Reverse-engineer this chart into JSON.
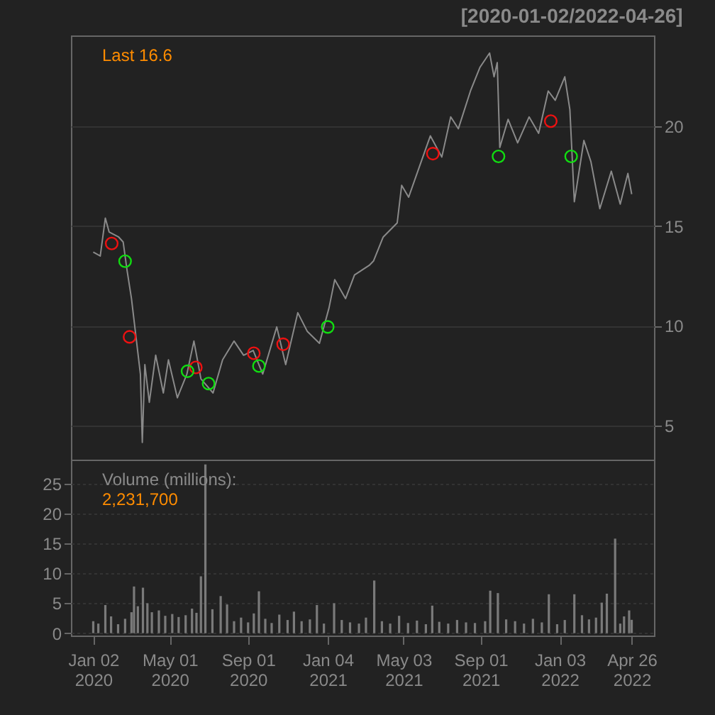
{
  "chart_data": [
    {
      "type": "line",
      "title": "[2020-01-02/2022-04-26]",
      "annotations": [
        "Last 16.6"
      ],
      "xlim": [
        "2019-11-28",
        "2022-05-31"
      ],
      "xticks": [
        {
          "value": "2020-01-02",
          "label": null
        },
        {
          "value": "2020-05-01",
          "label": null
        },
        {
          "value": "2020-09-01",
          "label": null
        },
        {
          "value": "2021-01-04",
          "label": null
        },
        {
          "value": "2021-05-03",
          "label": null
        },
        {
          "value": "2021-09-01",
          "label": null
        },
        {
          "value": "2022-01-03",
          "label": null
        },
        {
          "value": "2022-04-26",
          "label": null
        }
      ],
      "ylim": [
        3.3,
        24.55
      ],
      "yticks": [
        5,
        10,
        15,
        20
      ],
      "grid": "y",
      "tick_labels": "y",
      "series": [
        {
          "type": "line",
          "color": "#8a8a8a",
          "x": [
            "2020-01-02",
            "2020-01-13",
            "2020-01-21",
            "2020-01-27",
            "2020-02-11",
            "2020-02-18",
            "2020-02-24",
            "2020-03-02",
            "2020-03-09",
            "2020-03-16",
            "2020-03-19",
            "2020-03-23",
            "2020-03-30",
            "2020-04-09",
            "2020-04-21",
            "2020-04-29",
            "2020-05-13",
            "2020-05-28",
            "2020-06-08",
            "2020-06-19",
            "2020-07-08",
            "2020-07-23",
            "2020-08-10",
            "2020-08-25",
            "2020-09-09",
            "2020-09-24",
            "2020-10-16",
            "2020-10-30",
            "2020-11-18",
            "2020-12-03",
            "2020-12-22",
            "2021-01-06",
            "2021-01-15",
            "2021-02-01",
            "2021-02-15",
            "2021-03-10",
            "2021-03-17",
            "2021-04-01",
            "2021-04-23",
            "2021-04-30",
            "2021-05-11",
            "2021-05-28",
            "2021-06-14",
            "2021-07-02",
            "2021-07-16",
            "2021-07-28",
            "2021-08-16",
            "2021-08-31",
            "2021-09-15",
            "2021-09-22",
            "2021-09-27",
            "2021-10-01",
            "2021-10-14",
            "2021-10-29",
            "2021-11-16",
            "2021-12-01",
            "2021-12-16",
            "2021-12-27",
            "2022-01-11",
            "2022-01-19",
            "2022-01-26",
            "2022-02-10",
            "2022-02-21",
            "2022-03-07",
            "2022-03-25",
            "2022-04-08",
            "2022-04-20",
            "2022-04-26"
          ],
          "values": [
            13.7,
            13.5,
            15.4,
            14.7,
            14.45,
            14.2,
            12.8,
            11.37,
            9.48,
            7.59,
            4.16,
            8.06,
            6.17,
            8.53,
            6.64,
            8.3,
            6.4,
            7.59,
            9.24,
            7.35,
            6.64,
            8.3,
            9.24,
            8.53,
            8.77,
            7.59,
            9.95,
            8.06,
            10.66,
            9.72,
            9.13,
            10.9,
            12.32,
            11.37,
            12.55,
            13.03,
            13.26,
            14.45,
            15.16,
            17.04,
            16.45,
            17.99,
            19.52,
            18.46,
            20.47,
            19.88,
            21.77,
            22.96,
            23.67,
            22.48,
            23.19,
            18.94,
            20.35,
            19.17,
            20.47,
            19.65,
            21.77,
            21.3,
            22.48,
            20.83,
            16.22,
            19.29,
            18.23,
            15.87,
            17.75,
            16.1,
            17.64,
            16.6
          ]
        },
        {
          "type": "scatter",
          "marker": "circle",
          "color": "#ee1111",
          "x": [
            "2020-01-31",
            "2020-02-28",
            "2020-06-11",
            "2020-09-10",
            "2020-10-26",
            "2021-06-18",
            "2021-12-20"
          ],
          "values": [
            14.13,
            9.45,
            7.92,
            8.63,
            9.08,
            18.63,
            20.26
          ]
        },
        {
          "type": "scatter",
          "marker": "circle",
          "color": "#11dd11",
          "x": [
            "2020-02-21",
            "2020-05-29",
            "2020-07-01",
            "2020-09-18",
            "2021-01-04",
            "2021-09-29",
            "2022-01-21"
          ],
          "values": [
            13.24,
            7.73,
            7.11,
            7.99,
            9.95,
            18.49,
            18.49
          ]
        }
      ]
    },
    {
      "type": "bar",
      "annotations": [
        "Volume (millions):",
        "2,231,700"
      ],
      "xlim": [
        "2019-11-28",
        "2022-05-31"
      ],
      "xticks": [
        {
          "value": "2020-01-02",
          "label": "Jan 02 2020"
        },
        {
          "value": "2020-05-01",
          "label": "May 01 2020"
        },
        {
          "value": "2020-09-01",
          "label": "Sep 01 2020"
        },
        {
          "value": "2021-01-04",
          "label": "Jan 04 2021"
        },
        {
          "value": "2021-05-03",
          "label": "May 03 2021"
        },
        {
          "value": "2021-09-01",
          "label": "Sep 01 2021"
        },
        {
          "value": "2022-01-03",
          "label": "Jan 03 2022"
        },
        {
          "value": "2022-04-26",
          "label": "Apr 26 2022"
        }
      ],
      "ylim": [
        -0.4,
        29
      ],
      "yticks": [
        0,
        5,
        10,
        15,
        20,
        25
      ],
      "grid": "y",
      "series": [
        {
          "color": "#7a7a7a",
          "x": [
            "2020-01-02",
            "2020-01-10",
            "2020-01-21",
            "2020-01-30",
            "2020-02-10",
            "2020-02-21",
            "2020-03-02",
            "2020-03-06",
            "2020-03-12",
            "2020-03-20",
            "2020-03-27",
            "2020-04-03",
            "2020-04-14",
            "2020-04-24",
            "2020-05-05",
            "2020-05-15",
            "2020-05-26",
            "2020-06-05",
            "2020-06-12",
            "2020-06-19",
            "2020-06-26",
            "2020-07-07",
            "2020-07-20",
            "2020-07-30",
            "2020-08-10",
            "2020-08-21",
            "2020-09-01",
            "2020-09-10",
            "2020-09-18",
            "2020-09-28",
            "2020-10-08",
            "2020-10-20",
            "2020-11-02",
            "2020-11-12",
            "2020-11-24",
            "2020-12-07",
            "2020-12-18",
            "2020-12-29",
            "2021-01-14",
            "2021-01-26",
            "2021-02-08",
            "2021-02-22",
            "2021-03-05",
            "2021-03-18",
            "2021-03-30",
            "2021-04-12",
            "2021-04-26",
            "2021-05-10",
            "2021-05-24",
            "2021-06-07",
            "2021-06-17",
            "2021-06-28",
            "2021-07-12",
            "2021-07-26",
            "2021-08-09",
            "2021-08-23",
            "2021-09-08",
            "2021-09-16",
            "2021-09-28",
            "2021-10-11",
            "2021-10-25",
            "2021-11-08",
            "2021-11-22",
            "2021-12-06",
            "2021-12-17",
            "2021-12-30",
            "2022-01-11",
            "2022-01-26",
            "2022-02-07",
            "2022-02-18",
            "2022-03-01",
            "2022-03-10",
            "2022-03-18",
            "2022-03-31",
            "2022-04-08",
            "2022-04-14",
            "2022-04-22",
            "2022-04-26"
          ],
          "values": [
            2.0,
            1.6,
            4.7,
            2.8,
            1.5,
            2.4,
            3.5,
            7.8,
            4.5,
            7.6,
            5.0,
            3.5,
            3.8,
            2.9,
            3.2,
            2.7,
            3.0,
            4.1,
            3.4,
            9.5,
            28.2,
            4.0,
            6.2,
            4.8,
            2.0,
            2.6,
            1.8,
            3.3,
            7.0,
            2.4,
            1.7,
            3.1,
            2.2,
            3.6,
            2.0,
            2.3,
            4.7,
            1.6,
            5.0,
            2.2,
            1.8,
            1.6,
            2.6,
            8.8,
            2.0,
            1.6,
            2.9,
            1.7,
            2.1,
            1.5,
            4.6,
            1.9,
            1.6,
            2.2,
            1.8,
            1.7,
            2.0,
            7.1,
            6.7,
            2.3,
            2.0,
            1.6,
            2.4,
            1.8,
            6.5,
            1.5,
            2.2,
            6.5,
            3.0,
            2.3,
            2.6,
            5.1,
            6.6,
            15.8,
            1.6,
            2.8,
            3.8,
            2.23
          ]
        }
      ]
    }
  ]
}
